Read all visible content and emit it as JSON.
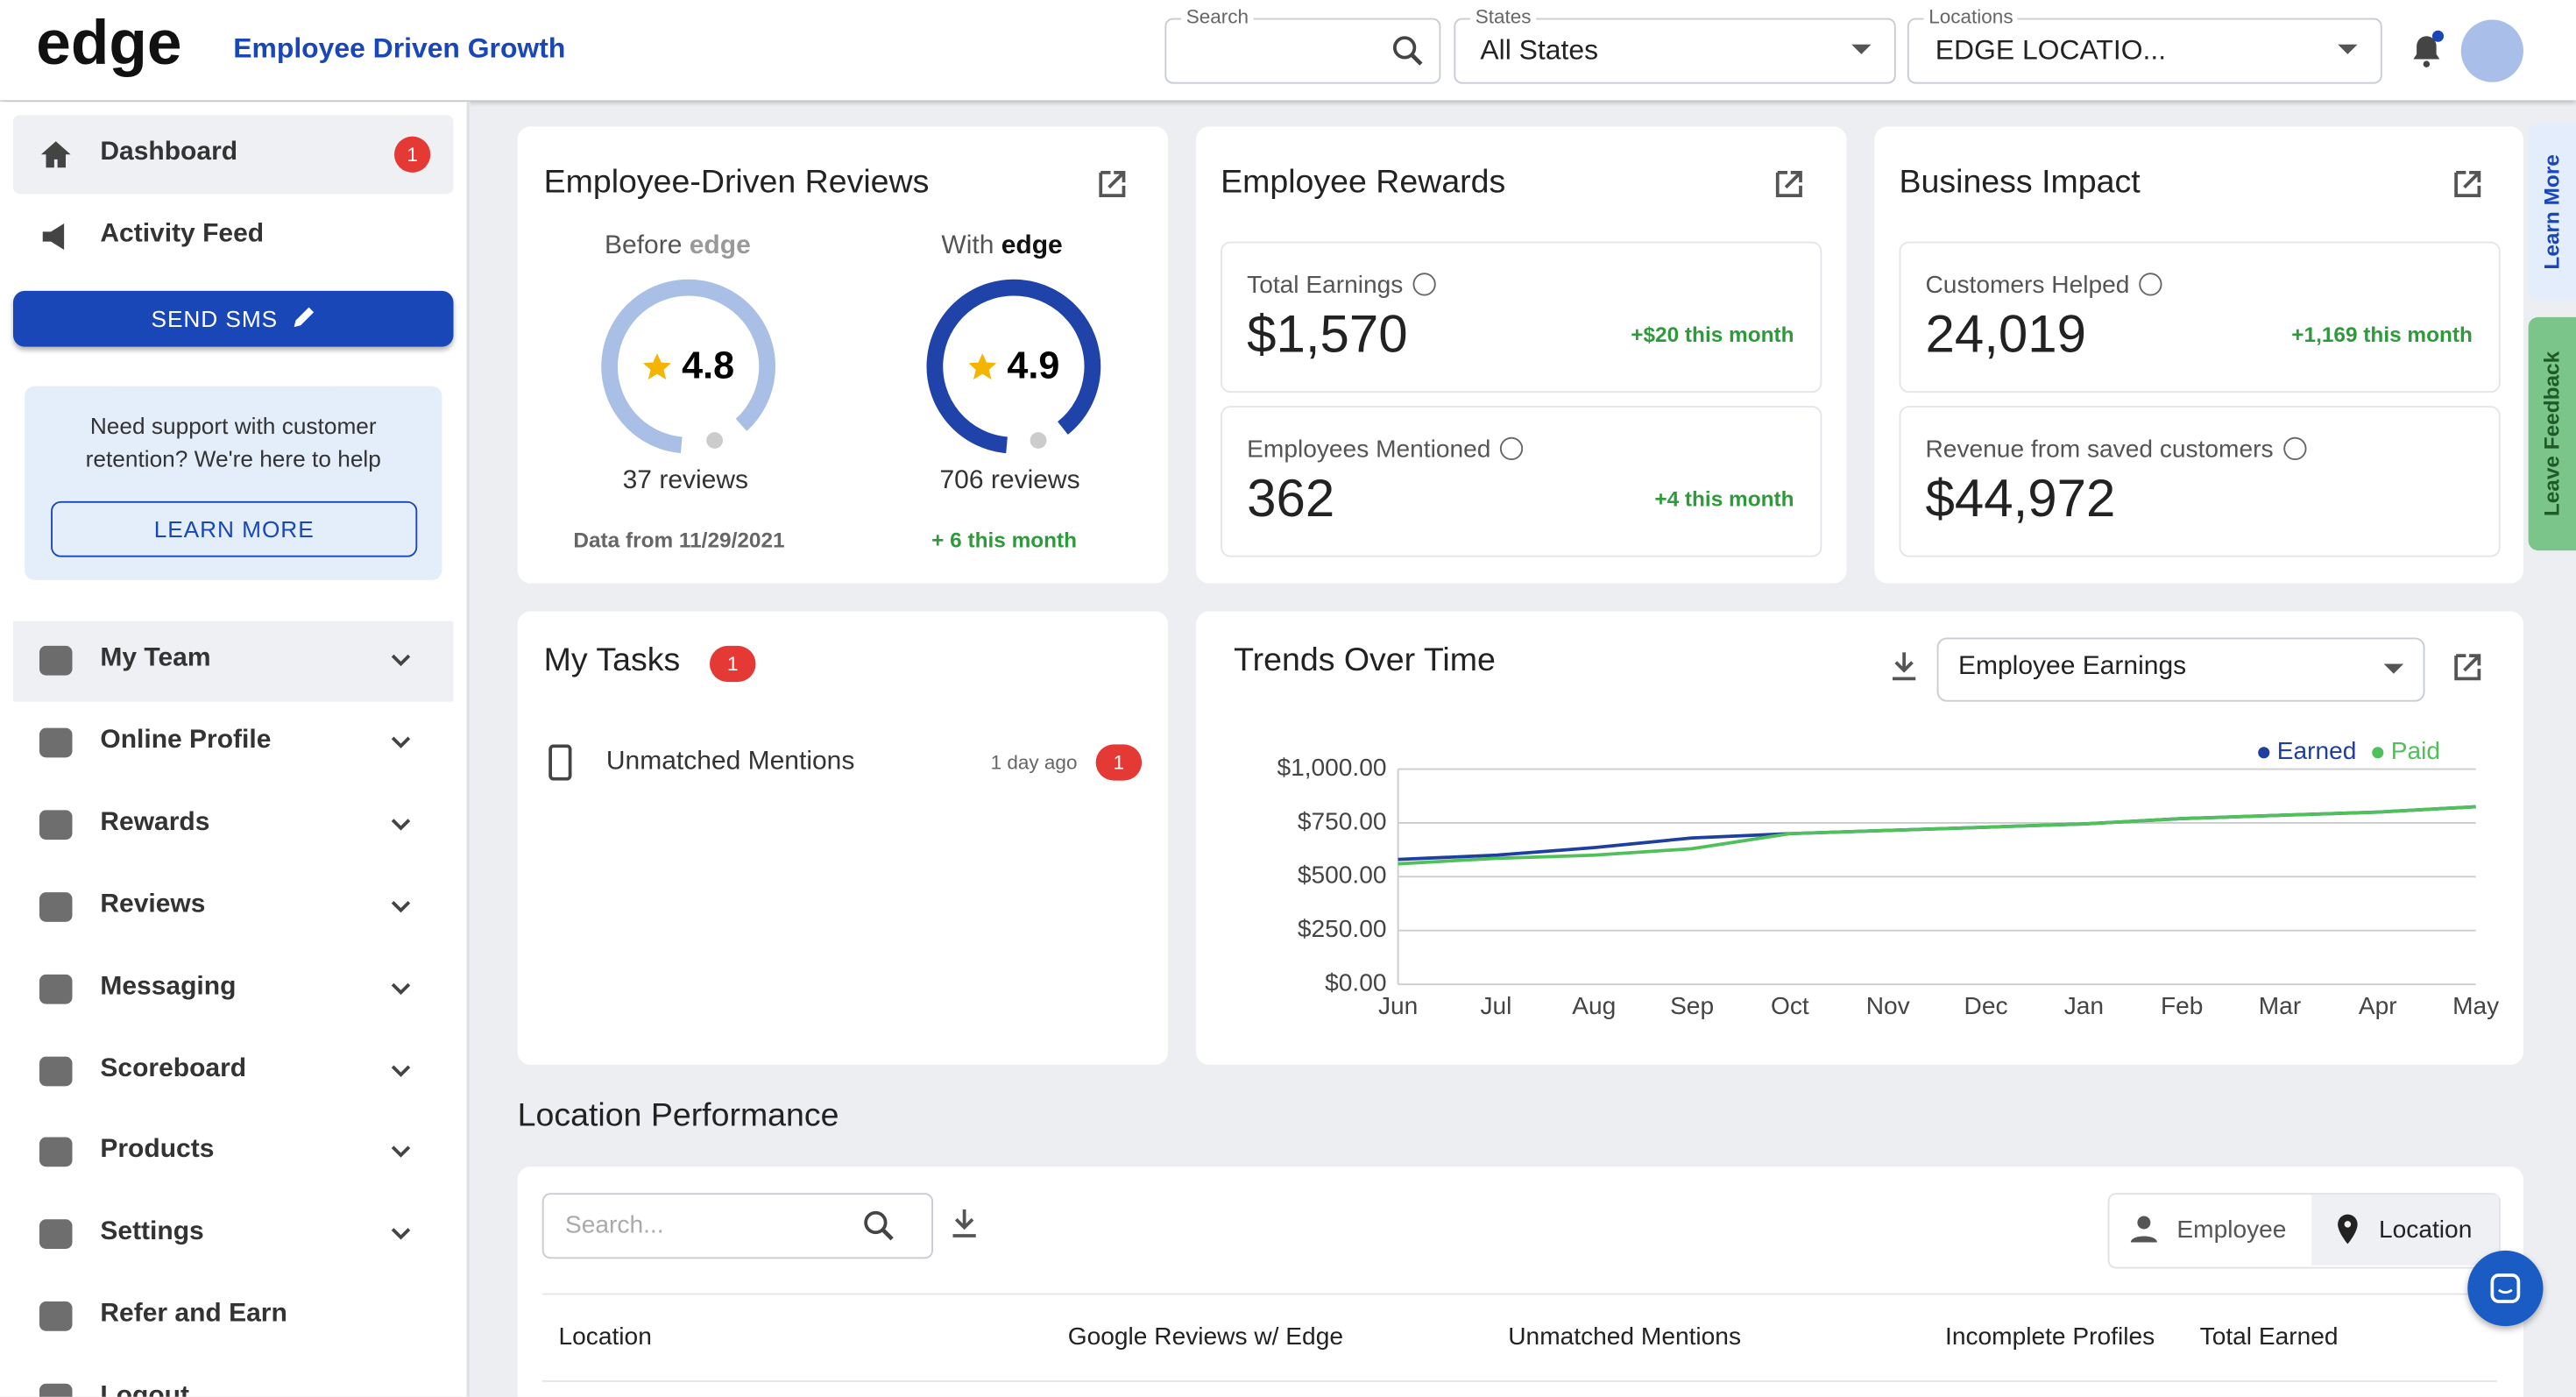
{
  "header": {
    "logo": "edge",
    "tagline": "Employee Driven Growth",
    "search_label": "Search",
    "states_label": "States",
    "states_value": "All States",
    "locations_label": "Locations",
    "locations_value": "EDGE LOCATIO..."
  },
  "sidebar": {
    "items": [
      {
        "label": "Dashboard",
        "badge": "1"
      },
      {
        "label": "Activity Feed"
      }
    ],
    "send_sms": "SEND SMS",
    "support_text": "Need support with customer retention? We're here to help",
    "learn_more": "LEARN MORE",
    "menu": [
      "My Team",
      "Online Profile",
      "Rewards",
      "Reviews",
      "Messaging",
      "Scoreboard",
      "Products",
      "Settings",
      "Refer and Earn",
      "Logout"
    ]
  },
  "reviews": {
    "title": "Employee-Driven Reviews",
    "before_label": "Before",
    "with_label": "With",
    "brand": "edge",
    "before_rating": "4.8",
    "with_rating": "4.9",
    "before_count": "37 reviews",
    "with_count": "706 reviews",
    "before_note": "Data from 11/29/2021",
    "with_note": "+ 6 this month"
  },
  "rewards": {
    "title": "Employee Rewards",
    "stats": [
      {
        "label": "Total Earnings",
        "value": "$1,570",
        "delta": "+$20 this month"
      },
      {
        "label": "Employees Mentioned",
        "value": "362",
        "delta": "+4 this month"
      }
    ]
  },
  "business": {
    "title": "Business Impact",
    "stats": [
      {
        "label": "Customers Helped",
        "value": "24,019",
        "delta": "+1,169 this month"
      },
      {
        "label": "Revenue from saved customers",
        "value": "$44,972"
      }
    ]
  },
  "tasks": {
    "title": "My Tasks",
    "badge": "1",
    "items": [
      {
        "label": "Unmatched Mentions",
        "time": "1 day ago",
        "badge": "1"
      }
    ]
  },
  "trends": {
    "title": "Trends Over Time",
    "dropdown": "Employee Earnings"
  },
  "chart_data": {
    "type": "line",
    "categories": [
      "Jun",
      "Jul",
      "Aug",
      "Sep",
      "Oct",
      "Nov",
      "Dec",
      "Jan",
      "Feb",
      "Mar",
      "Apr",
      "May"
    ],
    "series": [
      {
        "name": "Earned",
        "color": "#1f3fa0",
        "values": [
          580,
          600,
          635,
          680,
          700,
          715,
          730,
          745,
          770,
          785,
          800,
          825
        ]
      },
      {
        "name": "Paid",
        "color": "#4fc05a",
        "values": [
          560,
          585,
          600,
          630,
          700,
          715,
          730,
          745,
          770,
          785,
          800,
          825
        ]
      }
    ],
    "ylim": [
      0,
      1000
    ],
    "yticks": [
      {
        "value": 0,
        "label": "$0.00"
      },
      {
        "value": 250,
        "label": "$250.00"
      },
      {
        "value": 500,
        "label": "$500.00"
      },
      {
        "value": 750,
        "label": "$750.00"
      },
      {
        "value": 1000,
        "label": "$1,000.00"
      }
    ],
    "grid": true
  },
  "location_performance": {
    "title": "Location Performance",
    "search_placeholder": "Search...",
    "toggle": [
      "Employee",
      "Location"
    ],
    "columns": [
      "Location",
      "Google Reviews w/ Edge",
      "Unmatched Mentions",
      "Incomplete Profiles",
      "Total Earned"
    ]
  },
  "side_tabs": [
    "Learn More",
    "Leave Feedback"
  ]
}
